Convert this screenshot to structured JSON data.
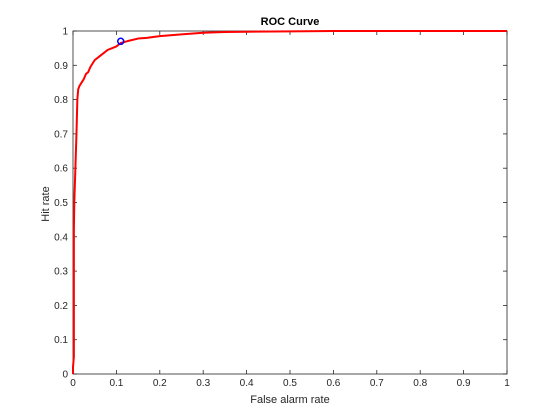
{
  "chart_data": {
    "type": "line",
    "title": "ROC Curve",
    "xlabel": "False alarm rate",
    "ylabel": "Hit rate",
    "xlim": [
      0,
      1
    ],
    "ylim": [
      0,
      1
    ],
    "x_ticks": [
      0,
      0.1,
      0.2,
      0.3,
      0.4,
      0.5,
      0.6,
      0.7,
      0.8,
      0.9,
      1
    ],
    "y_ticks": [
      0,
      0.1,
      0.2,
      0.3,
      0.4,
      0.5,
      0.6,
      0.7,
      0.8,
      0.9,
      1
    ],
    "x_tick_labels": [
      "0",
      "0.1",
      "0.2",
      "0.3",
      "0.4",
      "0.5",
      "0.6",
      "0.7",
      "0.8",
      "0.9",
      "1"
    ],
    "y_tick_labels": [
      "0",
      "0.1",
      "0.2",
      "0.3",
      "0.4",
      "0.5",
      "0.6",
      "0.7",
      "0.8",
      "0.9",
      "1"
    ],
    "grid": false,
    "series": [
      {
        "color": "#ff0000",
        "points": [
          [
            0,
            0
          ],
          [
            0,
            0.02
          ],
          [
            0.002,
            0.05
          ],
          [
            0.002,
            0.42
          ],
          [
            0.003,
            0.5
          ],
          [
            0.005,
            0.58
          ],
          [
            0.006,
            0.62
          ],
          [
            0.008,
            0.7
          ],
          [
            0.009,
            0.75
          ],
          [
            0.01,
            0.8
          ],
          [
            0.012,
            0.83
          ],
          [
            0.015,
            0.84
          ],
          [
            0.02,
            0.85
          ],
          [
            0.025,
            0.86
          ],
          [
            0.03,
            0.875
          ],
          [
            0.035,
            0.88
          ],
          [
            0.04,
            0.895
          ],
          [
            0.05,
            0.915
          ],
          [
            0.06,
            0.925
          ],
          [
            0.07,
            0.935
          ],
          [
            0.08,
            0.945
          ],
          [
            0.09,
            0.95
          ],
          [
            0.1,
            0.955
          ],
          [
            0.11,
            0.965
          ],
          [
            0.13,
            0.972
          ],
          [
            0.15,
            0.978
          ],
          [
            0.17,
            0.98
          ],
          [
            0.2,
            0.985
          ],
          [
            0.25,
            0.99
          ],
          [
            0.3,
            0.995
          ],
          [
            0.35,
            0.997
          ],
          [
            0.4,
            0.998
          ],
          [
            0.5,
            0.999
          ],
          [
            0.6,
            1.0
          ],
          [
            1.0,
            1.0
          ]
        ]
      }
    ],
    "marker": {
      "x": 0.11,
      "y": 0.97,
      "color": "#0000ff"
    }
  }
}
